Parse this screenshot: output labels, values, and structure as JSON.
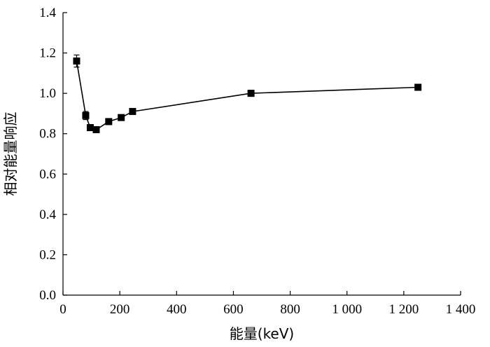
{
  "chart_data": {
    "type": "line",
    "title": "",
    "xlabel": "能量(keV)",
    "ylabel": "相对能量响应",
    "xlim": [
      0,
      1400
    ],
    "ylim": [
      0.0,
      1.4
    ],
    "x_ticks": [
      0,
      200,
      400,
      600,
      800,
      1000,
      1200,
      1400
    ],
    "x_tick_labels": [
      "0",
      "200",
      "400",
      "600",
      "800",
      "1 000",
      "1 200",
      "1 400"
    ],
    "y_ticks": [
      0.0,
      0.2,
      0.4,
      0.6,
      0.8,
      1.0,
      1.2,
      1.4
    ],
    "y_tick_labels": [
      "0.0",
      "0.2",
      "0.4",
      "0.6",
      "0.8",
      "1.0",
      "1.2",
      "1.4"
    ],
    "grid": false,
    "legend": "none",
    "marker": "square",
    "series": [
      {
        "x": [
          48,
          80,
          96,
          117,
          161,
          205,
          245,
          662,
          1250
        ],
        "y": [
          1.16,
          0.89,
          0.83,
          0.82,
          0.86,
          0.88,
          0.91,
          1.0,
          1.03
        ],
        "yerr": [
          0.03,
          0.02,
          0.015,
          0.012,
          0.015,
          0.012,
          0.012,
          0.015,
          0.015
        ]
      }
    ]
  }
}
